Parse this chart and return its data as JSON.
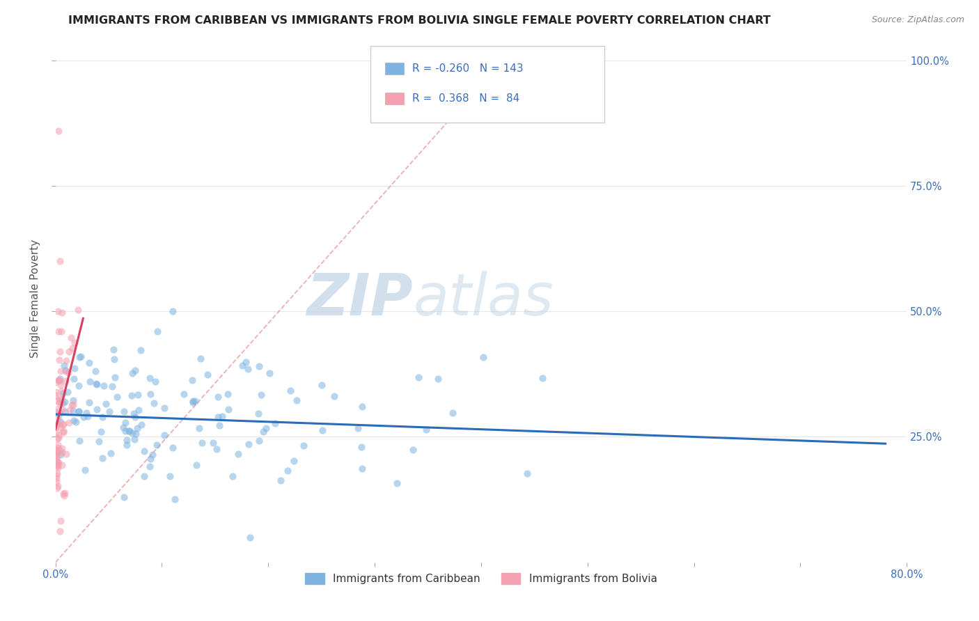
{
  "title": "IMMIGRANTS FROM CARIBBEAN VS IMMIGRANTS FROM BOLIVIA SINGLE FEMALE POVERTY CORRELATION CHART",
  "source_text": "Source: ZipAtlas.com",
  "ylabel": "Single Female Poverty",
  "legend_label_1": "Immigrants from Caribbean",
  "legend_label_2": "Immigrants from Bolivia",
  "R1": -0.26,
  "N1": 143,
  "R2": 0.368,
  "N2": 84,
  "color1": "#7EB3E0",
  "color2": "#F4A0B0",
  "trendline_color1": "#2B6CB8",
  "trendline_color2": "#D44060",
  "diag_color": "#E8A0A8",
  "xlim": [
    0.0,
    0.8
  ],
  "ylim": [
    0.0,
    1.05
  ],
  "xticks": [
    0.0,
    0.1,
    0.2,
    0.3,
    0.4,
    0.5,
    0.6,
    0.7,
    0.8
  ],
  "yticks": [
    0.25,
    0.5,
    0.75,
    1.0
  ],
  "yticklabels_right": [
    "25.0%",
    "50.0%",
    "75.0%",
    "100.0%"
  ],
  "watermark_zip": "ZIP",
  "watermark_atlas": "atlas",
  "background_color": "#ffffff",
  "grid_color": "#e8e8e8",
  "title_fontsize": 11.5,
  "axis_fontsize": 11,
  "tick_fontsize": 10.5,
  "scatter_alpha": 0.55,
  "scatter_size": 55,
  "legend_text_color": "#3B6DBF"
}
